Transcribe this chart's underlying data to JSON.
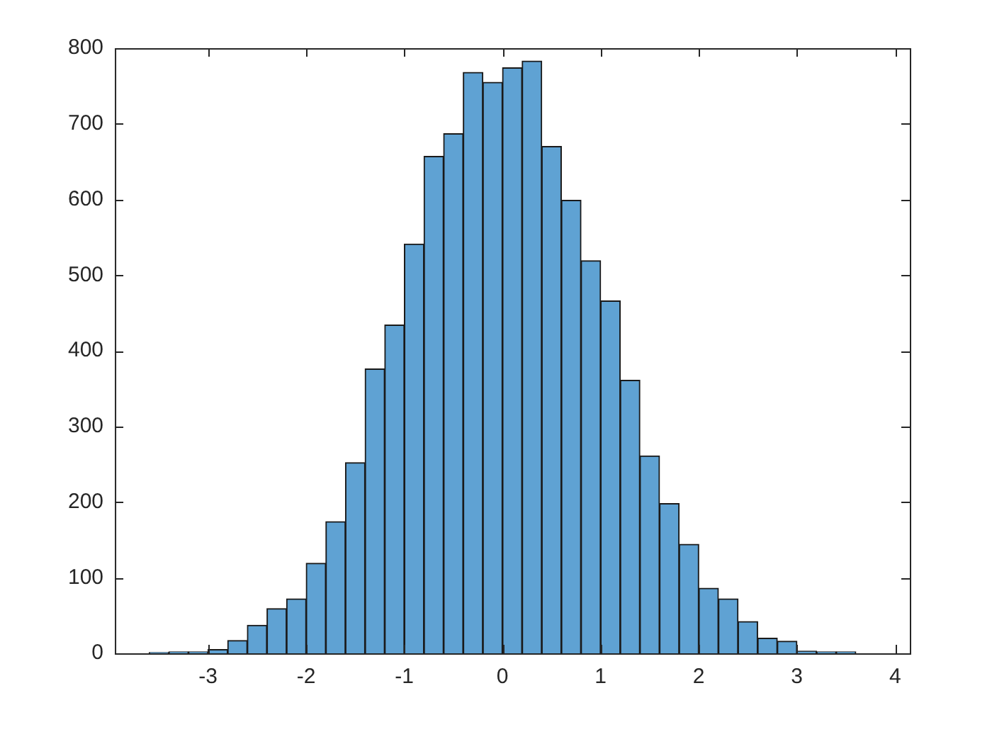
{
  "chart_data": {
    "type": "histogram",
    "bins": [
      -3.6,
      -3.4,
      -3.2,
      -3.0,
      -2.8,
      -2.6,
      -2.4,
      -2.2,
      -2.0,
      -1.8,
      -1.6,
      -1.4,
      -1.2,
      -1.0,
      -0.8,
      -0.6,
      -0.4,
      -0.2,
      0,
      0.2,
      0.4,
      0.6,
      0.8,
      1.0,
      1.2,
      1.4,
      1.6,
      1.8,
      2.0,
      2.2,
      2.4,
      2.6,
      2.8,
      3.0,
      3.2,
      3.4,
      3.6
    ],
    "values": [
      1,
      2,
      2,
      5,
      17,
      37,
      59,
      72,
      119,
      174,
      252,
      376,
      434,
      541,
      657,
      687,
      768,
      755,
      774,
      783,
      670,
      599,
      519,
      466,
      361,
      261,
      198,
      144,
      86,
      72,
      42,
      20,
      16,
      3,
      2,
      2
    ],
    "color": "#5fa2d3",
    "xlim": [
      -3.95,
      4.15
    ],
    "xticks": [
      -3,
      -2,
      -1,
      0,
      1,
      2,
      3,
      4
    ],
    "ylim": [
      0,
      800
    ],
    "yticks": [
      0,
      100,
      200,
      300,
      400,
      500,
      600,
      700,
      800
    ],
    "grid": false,
    "legend": false
  }
}
